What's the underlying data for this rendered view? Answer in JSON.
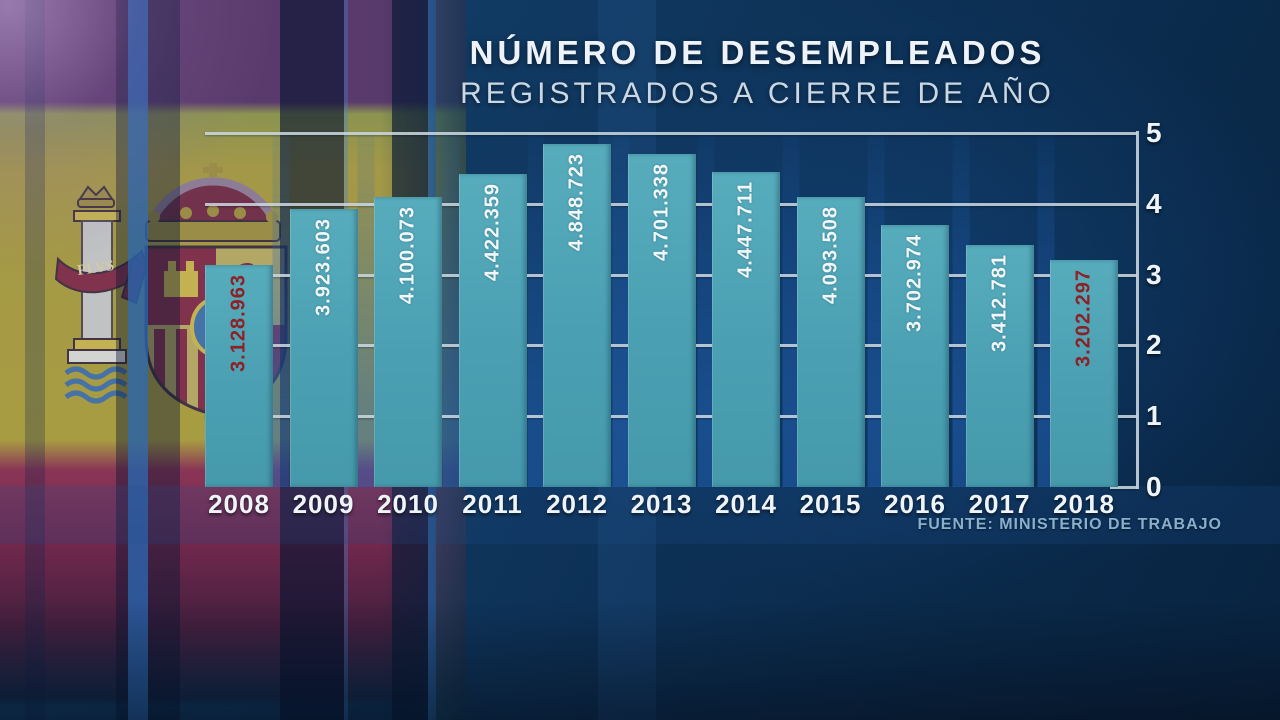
{
  "header": {
    "title": "NÚMERO DE DESEMPLEADOS",
    "subtitle": "REGISTRADOS A CIERRE DE AÑO"
  },
  "source": "FUENTE: MINISTERIO DE TRABAJO",
  "chart_data": {
    "type": "bar",
    "title": "NÚMERO DE DESEMPLEADOS REGISTRADOS A CIERRE DE AÑO",
    "categories": [
      "2008",
      "2009",
      "2010",
      "2011",
      "2012",
      "2013",
      "2014",
      "2015",
      "2016",
      "2017",
      "2018"
    ],
    "values": [
      3128963,
      3923603,
      4100073,
      4422359,
      4848723,
      4701338,
      4447711,
      4093508,
      3702974,
      3412781,
      3202297
    ],
    "value_labels": [
      "3.128.963",
      "3.923.603",
      "4.100.073",
      "4.422.359",
      "4.848.723",
      "4.701.338",
      "4.447.711",
      "4.093.508",
      "3.702.974",
      "3.412.781",
      "3.202.297"
    ],
    "highlighted_categories": [
      "2008",
      "2018"
    ],
    "y_axis_ticks": [
      "5",
      "4",
      "3",
      "2",
      "1",
      "0"
    ],
    "ylim": [
      0,
      5000000
    ],
    "grid": true,
    "legend": false,
    "axis_position": "right",
    "colors": {
      "bar": "#4ea4b5",
      "value_label": "#f2f7f9",
      "value_label_highlight": "#8e2126",
      "axis": "#c9d5de",
      "year_label": "#eef4f8"
    }
  }
}
